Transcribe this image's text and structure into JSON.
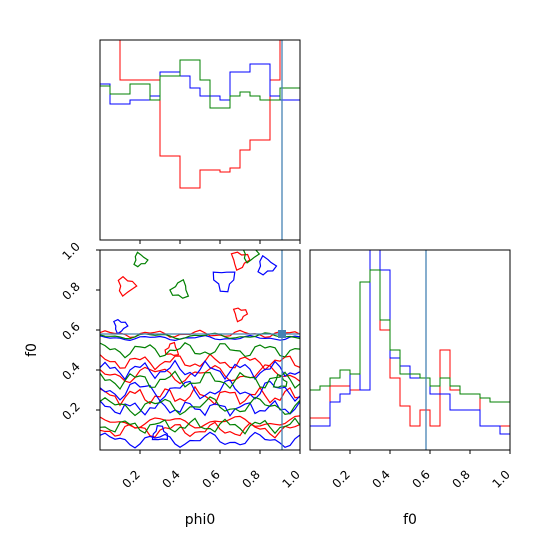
{
  "chart_data": {
    "type": "corner",
    "parameters": [
      "phi0",
      "f0"
    ],
    "truth": {
      "phi0": 0.91,
      "f0": 0.58
    },
    "colors": {
      "red": "#ff0000",
      "blue": "#0000ff",
      "green": "#008000",
      "truth": "#4682b4"
    },
    "axes": {
      "phi0": {
        "label": "phi0",
        "range": [
          0,
          1
        ],
        "ticks": [
          0.2,
          0.4,
          0.6,
          0.8,
          1.0
        ],
        "tick_labels": [
          "0.2",
          "0.4",
          "0.6",
          "0.8",
          "1.0"
        ]
      },
      "f0": {
        "label": "f0",
        "range": [
          0,
          1
        ],
        "ticks": [
          0.2,
          0.4,
          0.6,
          0.8,
          1.0
        ],
        "tick_labels": [
          "0.2",
          "0.4",
          "0.6",
          "0.8",
          "1.0"
        ]
      }
    },
    "hist_phi0": {
      "bins": 20,
      "ymax": 1.0,
      "series": [
        {
          "color": "red",
          "values": [
            1.05,
            1.0,
            0.8,
            0.8,
            0.8,
            0.8,
            0.42,
            0.42,
            0.26,
            0.26,
            0.35,
            0.35,
            0.34,
            0.36,
            0.45,
            0.5,
            0.5,
            0.8,
            1.05,
            1.05
          ]
        },
        {
          "color": "blue",
          "values": [
            0.78,
            0.68,
            0.68,
            0.7,
            0.7,
            0.72,
            0.84,
            0.84,
            0.82,
            0.76,
            0.72,
            0.72,
            0.7,
            0.84,
            0.84,
            0.88,
            0.88,
            0.72,
            0.7,
            0.7
          ]
        },
        {
          "color": "green",
          "values": [
            0.77,
            0.73,
            0.73,
            0.78,
            0.78,
            0.7,
            0.82,
            0.82,
            0.9,
            0.9,
            0.8,
            0.66,
            0.66,
            0.72,
            0.74,
            0.72,
            0.7,
            0.7,
            0.76,
            0.76
          ]
        }
      ]
    },
    "hist_f0": {
      "bins": 20,
      "ymax": 1.0,
      "series": [
        {
          "color": "red",
          "values": [
            0.16,
            0.16,
            0.32,
            0.32,
            0.3,
            0.84,
            1.2,
            0.6,
            0.36,
            0.22,
            0.12,
            0.2,
            0.12,
            0.5,
            0.3,
            0.28,
            0.28,
            0.12,
            0.12,
            0.12
          ]
        },
        {
          "color": "blue",
          "values": [
            0.12,
            0.12,
            0.24,
            0.28,
            0.38,
            0.3,
            1.2,
            0.9,
            0.46,
            0.42,
            0.36,
            0.36,
            0.28,
            0.28,
            0.2,
            0.2,
            0.2,
            0.12,
            0.12,
            0.08
          ]
        },
        {
          "color": "green",
          "values": [
            0.3,
            0.32,
            0.36,
            0.4,
            0.38,
            0.84,
            0.9,
            0.65,
            0.5,
            0.38,
            0.38,
            0.36,
            0.32,
            0.36,
            0.32,
            0.28,
            0.28,
            0.26,
            0.24,
            0.24
          ]
        }
      ]
    },
    "contours": [
      {
        "color": "red",
        "bands": [
          {
            "center": 0.58,
            "amp": 0.012,
            "freq": 9,
            "phase": 0.3
          },
          {
            "center": 0.44,
            "amp": 0.025,
            "freq": 11,
            "phase": 1.1
          },
          {
            "center": 0.38,
            "amp": 0.03,
            "freq": 7,
            "phase": 2.0
          },
          {
            "center": 0.27,
            "amp": 0.03,
            "freq": 13,
            "phase": 0.7
          },
          {
            "center": 0.14,
            "amp": 0.02,
            "freq": 6,
            "phase": 1.6
          },
          {
            "center": 0.1,
            "amp": 0.025,
            "freq": 10,
            "phase": 2.6
          }
        ],
        "loops": [
          {
            "x": 0.13,
            "y": 0.82,
            "r": 0.04
          },
          {
            "x": 0.7,
            "y": 0.68,
            "r": 0.03
          },
          {
            "x": 0.36,
            "y": 0.5,
            "r": 0.03
          },
          {
            "x": 0.7,
            "y": 0.95,
            "r": 0.04
          }
        ]
      },
      {
        "color": "blue",
        "bands": [
          {
            "center": 0.56,
            "amp": 0.008,
            "freq": 8,
            "phase": 1.4
          },
          {
            "center": 0.4,
            "amp": 0.03,
            "freq": 12,
            "phase": 0.2
          },
          {
            "center": 0.3,
            "amp": 0.035,
            "freq": 9,
            "phase": 2.3
          },
          {
            "center": 0.21,
            "amp": 0.025,
            "freq": 14,
            "phase": 1.0
          },
          {
            "center": 0.05,
            "amp": 0.025,
            "freq": 8,
            "phase": 0.5
          }
        ],
        "loops": [
          {
            "x": 0.62,
            "y": 0.85,
            "r": 0.05
          },
          {
            "x": 0.1,
            "y": 0.62,
            "r": 0.03
          },
          {
            "x": 0.83,
            "y": 0.92,
            "r": 0.04
          },
          {
            "x": 0.3,
            "y": 0.08,
            "r": 0.035
          }
        ]
      },
      {
        "color": "green",
        "bands": [
          {
            "center": 0.57,
            "amp": 0.01,
            "freq": 7,
            "phase": 2.1
          },
          {
            "center": 0.5,
            "amp": 0.025,
            "freq": 10,
            "phase": 0.9
          },
          {
            "center": 0.35,
            "amp": 0.03,
            "freq": 11,
            "phase": 1.7
          },
          {
            "center": 0.22,
            "amp": 0.03,
            "freq": 8,
            "phase": 0.4
          },
          {
            "center": 0.12,
            "amp": 0.025,
            "freq": 12,
            "phase": 2.8
          }
        ],
        "loops": [
          {
            "x": 0.4,
            "y": 0.8,
            "r": 0.04
          },
          {
            "x": 0.75,
            "y": 0.98,
            "r": 0.035
          },
          {
            "x": 0.2,
            "y": 0.95,
            "r": 0.03
          },
          {
            "x": 0.9,
            "y": 0.34,
            "r": 0.03
          }
        ]
      }
    ]
  }
}
